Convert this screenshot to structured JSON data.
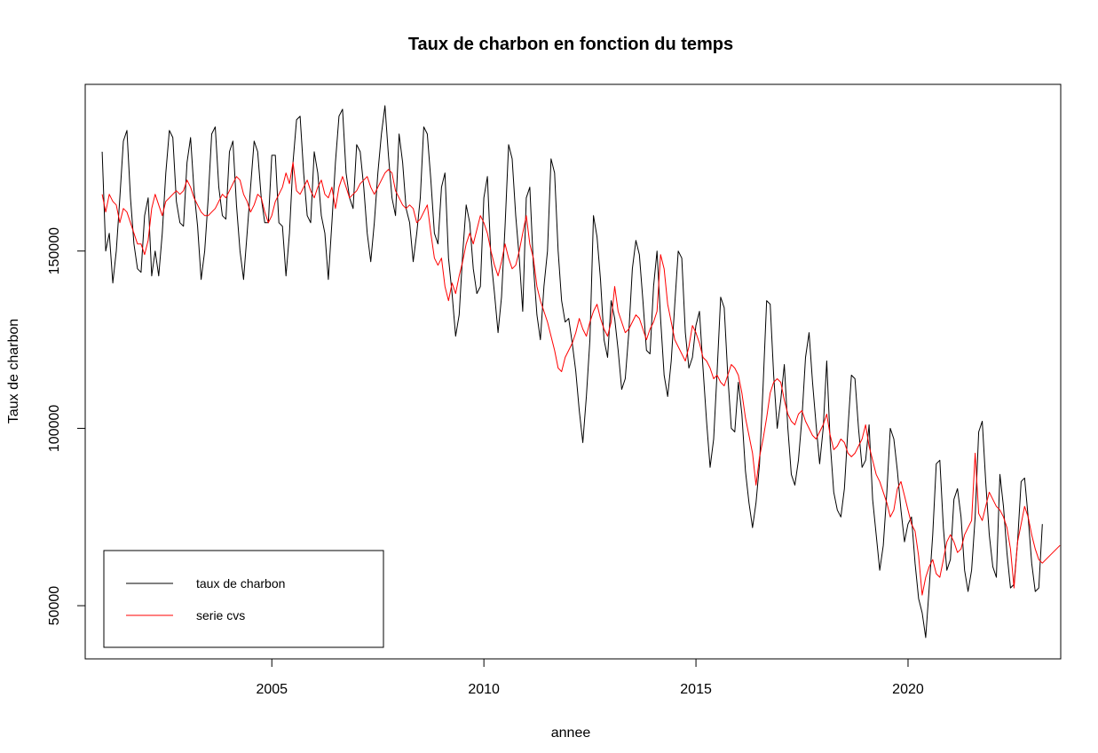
{
  "chart_data": {
    "type": "line",
    "title": "Taux de charbon en fonction du temps",
    "xlabel": "annee",
    "ylabel": "Taux de charbon",
    "xlim": [
      2000.6,
      2023.6
    ],
    "ylim": [
      35000,
      197000
    ],
    "x_ticks": [
      2005,
      2010,
      2015,
      2020
    ],
    "x_tick_labels": [
      "2005",
      "2010",
      "2015",
      "2020"
    ],
    "y_ticks": [
      50000,
      100000,
      150000
    ],
    "y_tick_labels": [
      "50000",
      "100000",
      "150000"
    ],
    "legend": {
      "position": "bottom-left",
      "entries": [
        {
          "label": "taux de charbon",
          "color": "#000000"
        },
        {
          "label": "serie cvs",
          "color": "#ff0000"
        }
      ]
    },
    "start_year": 2001.0,
    "step": 0.08333,
    "series": [
      {
        "name": "taux de charbon",
        "color": "#000000",
        "values": [
          178000,
          150000,
          155000,
          141000,
          150000,
          165000,
          181000,
          184000,
          165000,
          152000,
          145000,
          144000,
          160000,
          165000,
          143000,
          150000,
          143000,
          155000,
          172000,
          184000,
          182000,
          164000,
          158000,
          157000,
          175000,
          182000,
          167000,
          157000,
          142000,
          150000,
          165000,
          183000,
          185000,
          168000,
          160000,
          159000,
          178000,
          181000,
          163000,
          150000,
          142000,
          155000,
          168000,
          181000,
          178000,
          165000,
          158000,
          158000,
          177000,
          177000,
          158000,
          157000,
          143000,
          155000,
          175000,
          187000,
          188000,
          172000,
          160000,
          158000,
          178000,
          172000,
          160000,
          155000,
          142000,
          158000,
          175000,
          188000,
          190000,
          172000,
          165000,
          162000,
          180000,
          178000,
          168000,
          155000,
          147000,
          158000,
          172000,
          183000,
          191000,
          177000,
          165000,
          160000,
          183000,
          175000,
          162000,
          158000,
          147000,
          155000,
          165000,
          185000,
          183000,
          170000,
          155000,
          152000,
          168000,
          172000,
          148000,
          138000,
          126000,
          132000,
          149000,
          163000,
          158000,
          145000,
          138000,
          140000,
          165000,
          171000,
          148000,
          138000,
          127000,
          137000,
          157000,
          180000,
          176000,
          160000,
          148000,
          133000,
          165000,
          168000,
          146000,
          132000,
          125000,
          140000,
          150000,
          176000,
          172000,
          150000,
          136000,
          130000,
          131000,
          124000,
          116000,
          105000,
          96000,
          109000,
          125000,
          160000,
          154000,
          142000,
          125000,
          120000,
          136000,
          131000,
          122000,
          111000,
          114000,
          127000,
          145000,
          153000,
          149000,
          136000,
          122000,
          121000,
          140000,
          150000,
          131000,
          115000,
          109000,
          119000,
          135000,
          150000,
          148000,
          127000,
          117000,
          120000,
          129000,
          133000,
          117000,
          102000,
          89000,
          97000,
          116000,
          137000,
          134000,
          115000,
          100000,
          99000,
          113000,
          104000,
          88000,
          79000,
          72000,
          79000,
          90000,
          112000,
          136000,
          135000,
          115000,
          100000,
          108000,
          118000,
          100000,
          87000,
          84000,
          91000,
          103000,
          120000,
          127000,
          113000,
          101000,
          90000,
          100000,
          119000,
          96000,
          82000,
          77000,
          75000,
          83000,
          100000,
          115000,
          114000,
          100000,
          89000,
          91000,
          101000,
          80000,
          70000,
          60000,
          67000,
          82000,
          100000,
          97000,
          88000,
          77000,
          68000,
          73000,
          75000,
          62000,
          52000,
          48000,
          41000,
          55000,
          70000,
          90000,
          91000,
          72000,
          60000,
          63000,
          80000,
          83000,
          75000,
          60000,
          54000,
          60000,
          75000,
          99000,
          102000,
          85000,
          70000,
          61000,
          58000,
          87000,
          78000,
          65000,
          55000,
          56000,
          68000,
          85000,
          86000,
          75000,
          62000,
          54000,
          55000,
          73000
        ]
      },
      {
        "name": "serie cvs",
        "color": "#ff0000",
        "values": [
          166000,
          161000,
          166000,
          164000,
          163000,
          158000,
          162000,
          161000,
          158000,
          155000,
          152000,
          152000,
          149000,
          153000,
          162000,
          166000,
          163000,
          160000,
          164000,
          165000,
          166000,
          167000,
          166000,
          167000,
          170000,
          168000,
          165000,
          163000,
          161000,
          160000,
          160000,
          161000,
          162000,
          164000,
          166000,
          165000,
          167000,
          169000,
          171000,
          170000,
          166000,
          164000,
          161000,
          163000,
          166000,
          165000,
          161000,
          158000,
          160000,
          164000,
          166000,
          168000,
          172000,
          169000,
          175000,
          167000,
          166000,
          168000,
          170000,
          167000,
          165000,
          168000,
          170000,
          166000,
          165000,
          168000,
          162000,
          168000,
          171000,
          168000,
          165000,
          166000,
          167000,
          169000,
          170000,
          171000,
          168000,
          166000,
          168000,
          170000,
          172000,
          173000,
          172000,
          167000,
          165000,
          163000,
          162000,
          163000,
          162000,
          158000,
          159000,
          161000,
          163000,
          155000,
          148000,
          146000,
          148000,
          140000,
          136000,
          141000,
          138000,
          143000,
          147000,
          152000,
          155000,
          152000,
          156000,
          160000,
          158000,
          155000,
          150000,
          146000,
          143000,
          147000,
          152000,
          148000,
          145000,
          146000,
          150000,
          155000,
          160000,
          152000,
          148000,
          140000,
          136000,
          133000,
          130000,
          126000,
          122000,
          117000,
          116000,
          120000,
          122000,
          124000,
          127000,
          131000,
          128000,
          126000,
          130000,
          133000,
          135000,
          131000,
          128000,
          126000,
          130000,
          140000,
          133000,
          130000,
          127000,
          128000,
          130000,
          132000,
          131000,
          128000,
          125000,
          128000,
          130000,
          133000,
          149000,
          145000,
          135000,
          130000,
          125000,
          123000,
          121000,
          119000,
          123000,
          129000,
          127000,
          124000,
          120000,
          119000,
          117000,
          114000,
          115000,
          113000,
          112000,
          115000,
          118000,
          117000,
          115000,
          110000,
          103000,
          98000,
          93000,
          84000,
          92000,
          97000,
          103000,
          110000,
          113000,
          114000,
          113000,
          108000,
          104000,
          102000,
          101000,
          104000,
          105000,
          102000,
          100000,
          98000,
          97000,
          99000,
          101000,
          104000,
          98000,
          94000,
          95000,
          97000,
          96000,
          93000,
          92000,
          93000,
          95000,
          97000,
          101000,
          95000,
          91000,
          87000,
          85000,
          82000,
          79000,
          75000,
          77000,
          83000,
          85000,
          81000,
          77000,
          73000,
          71000,
          64000,
          53000,
          58000,
          61000,
          63000,
          59000,
          58000,
          63000,
          68000,
          70000,
          68000,
          65000,
          66000,
          70000,
          72000,
          74000,
          93000,
          76000,
          74000,
          78000,
          82000,
          80000,
          78000,
          77000,
          75000,
          72000,
          66000,
          55000,
          68000,
          73000,
          78000,
          75000,
          70000,
          66000,
          63000,
          62000,
          63000,
          64000,
          65000,
          66000,
          67000
        ]
      }
    ]
  }
}
